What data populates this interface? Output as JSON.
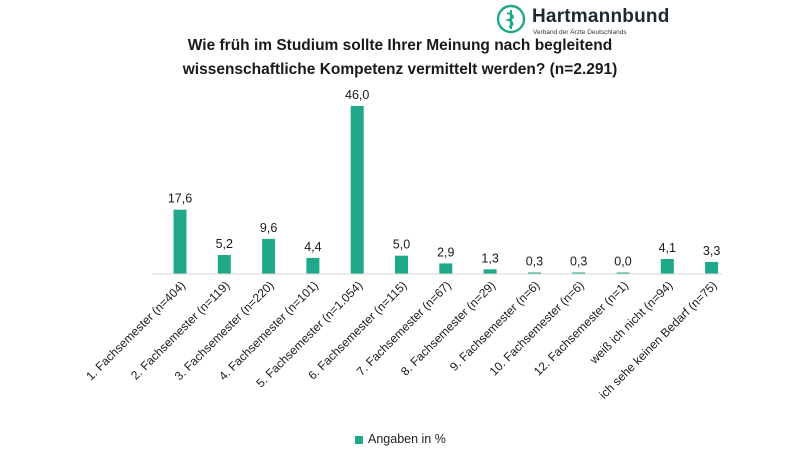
{
  "logo": {
    "name": "Hartmannbund",
    "subtitle": "Verband der Ärzte Deutschlands"
  },
  "header": {
    "title_line1": "Wie früh im Studium sollte Ihrer Meinung nach begleitend",
    "title_line2": "wissenschaftliche Kompetenz vermittelt werden? (n=2.291)"
  },
  "colors": {
    "bar": "#1fa88a",
    "logo": "#1fa88a"
  },
  "legend": {
    "position": "bottom-center",
    "label": "Angaben in %"
  },
  "chart_data": {
    "type": "bar",
    "title": "Wie früh im Studium sollte Ihrer Meinung nach begleitend wissenschaftliche Kompetenz vermittelt werden? (n=2.291)",
    "categories": [
      "1. Fachsemester (n=404)",
      "2. Fachsemester (n=119)",
      "3. Fachsemester (n=220)",
      "4. Fachsemester (n=101)",
      "5. Fachsemester (n=1.054)",
      "6. Fachsemester (n=115)",
      "7. Fachsemester (n=67)",
      "8. Fachsemester (n=29)",
      "9. Fachsemester (n=6)",
      "10. Fachsemester (n=6)",
      "12. Fachsemester (n=1)",
      "weiß ich nicht (n=94)",
      "ich sehe keinen Bedarf (n=75)"
    ],
    "series": [
      {
        "name": "Angaben in %",
        "values": [
          17.6,
          5.2,
          9.6,
          4.4,
          46.0,
          5.0,
          2.9,
          1.3,
          0.3,
          0.3,
          0.0,
          4.1,
          3.3
        ],
        "labels": [
          "17,6",
          "5,2",
          "9,6",
          "4,4",
          "46,0",
          "5,0",
          "2,9",
          "1,3",
          "0,3",
          "0,3",
          "0,0",
          "4,1",
          "3,3"
        ]
      }
    ],
    "ylim": [
      0,
      46
    ],
    "y_axis_visible": false,
    "grid": false,
    "xlabel": "",
    "ylabel": ""
  }
}
